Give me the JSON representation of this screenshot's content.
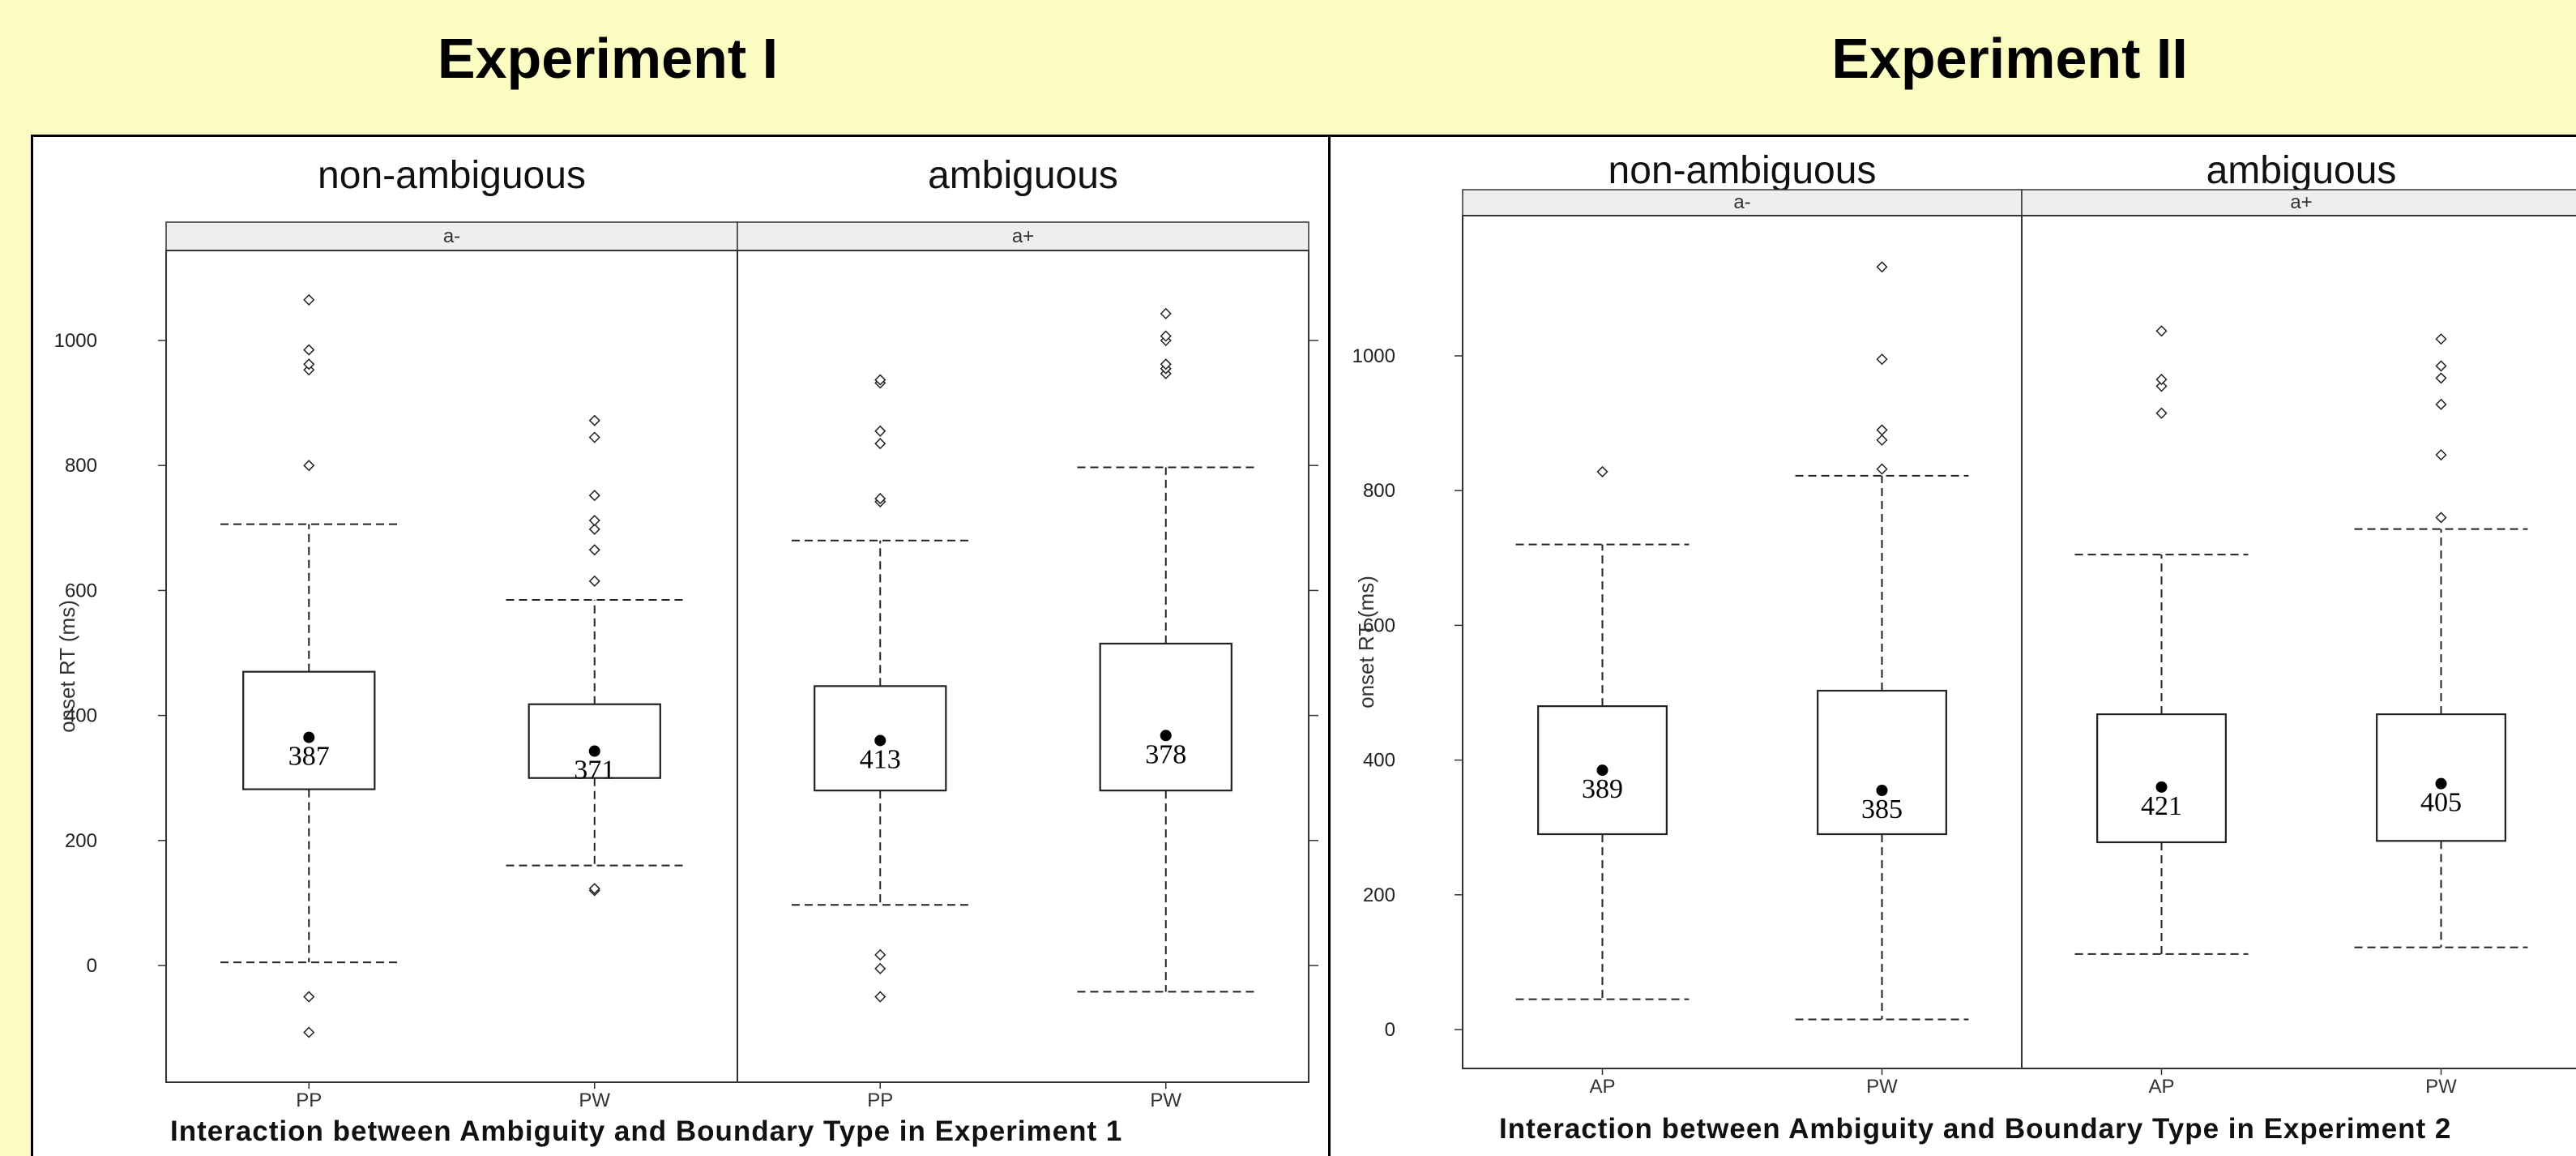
{
  "page": {
    "experiment1_title": "Experiment I",
    "experiment2_title": "Experiment II",
    "background_color": "#fafcc2"
  },
  "chart_data": [
    {
      "type": "box",
      "ylabel": "onset RT (ms)",
      "yticks": [
        0,
        200,
        400,
        600,
        800,
        1000
      ],
      "ylim": [
        -190,
        1145
      ],
      "caption": "Interaction between Ambiguity and Boundary Type in Experiment 1",
      "panels": [
        {
          "header": "non-ambiguous",
          "strip": "a-",
          "boxes": [
            {
              "category": "PP",
              "whisker_low": 5,
              "q1": 282,
              "q3": 470,
              "whisker_high": 706,
              "mean": 365,
              "label": "387",
              "outliers": [
                -50,
                -107,
                800,
                953,
                962,
                985,
                1065
              ]
            },
            {
              "category": "PW",
              "whisker_low": 160,
              "q1": 300,
              "q3": 418,
              "whisker_high": 585,
              "mean": 343,
              "label": "371",
              "outliers": [
                120,
                123,
                615,
                665,
                698,
                712,
                752,
                845,
                872
              ]
            }
          ]
        },
        {
          "header": "ambiguous",
          "strip": "a+",
          "boxes": [
            {
              "category": "PP",
              "whisker_low": 97,
              "q1": 280,
              "q3": 447,
              "whisker_high": 680,
              "mean": 360,
              "label": "413",
              "outliers": [
                -50,
                -5,
                17,
                742,
                747,
                835,
                855,
                932,
                937
              ]
            },
            {
              "category": "PW",
              "whisker_low": -42,
              "q1": 280,
              "q3": 515,
              "whisker_high": 797,
              "mean": 368,
              "label": "378",
              "outliers": [
                947,
                955,
                962,
                1000,
                1007,
                1043
              ]
            }
          ]
        }
      ]
    },
    {
      "type": "box",
      "ylabel": "onset RT (ms)",
      "yticks": [
        0,
        200,
        400,
        600,
        800,
        1000
      ],
      "ylim": [
        -60,
        1210
      ],
      "caption": "Interaction between Ambiguity and Boundary Type in Experiment 2",
      "panels": [
        {
          "header": "non-ambiguous",
          "strip": "a-",
          "boxes": [
            {
              "category": "AP",
              "whisker_low": 45,
              "q1": 290,
              "q3": 480,
              "whisker_high": 720,
              "mean": 385,
              "label": "389",
              "outliers": [
                828
              ]
            },
            {
              "category": "PW",
              "whisker_low": 15,
              "q1": 290,
              "q3": 503,
              "whisker_high": 822,
              "mean": 355,
              "label": "385",
              "outliers": [
                832,
                875,
                890,
                995,
                1132
              ]
            }
          ]
        },
        {
          "header": "ambiguous",
          "strip": "a+",
          "boxes": [
            {
              "category": "AP",
              "whisker_low": 112,
              "q1": 278,
              "q3": 468,
              "whisker_high": 705,
              "mean": 360,
              "label": "421",
              "outliers": [
                915,
                955,
                965,
                1037
              ]
            },
            {
              "category": "PW",
              "whisker_low": 122,
              "q1": 280,
              "q3": 468,
              "whisker_high": 743,
              "mean": 365,
              "label": "405",
              "outliers": [
                760,
                853,
                928,
                967,
                985,
                1025
              ]
            }
          ]
        }
      ]
    }
  ]
}
